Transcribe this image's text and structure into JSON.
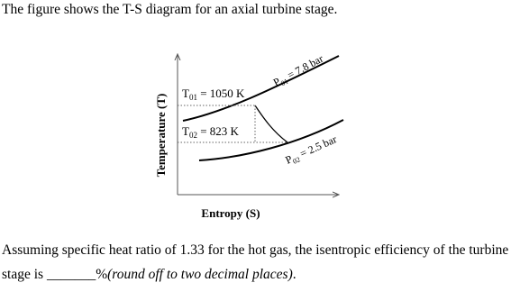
{
  "intro": "The figure shows the T-S diagram for an axial turbine stage.",
  "diagram": {
    "y_axis_label": "Temperature (T)",
    "x_axis_label": "Entropy (S)",
    "t01": {
      "symbol": "T",
      "subscript": "01",
      "text": " = 1050 K"
    },
    "t02": {
      "symbol": "T",
      "subscript": "02",
      "text": " = 823 K"
    },
    "p01": {
      "symbol": "P",
      "subscript": "01",
      "text": " = 7.8 bar"
    },
    "p02": {
      "symbol": "P",
      "subscript": "02",
      "text": " = 2.5 bar"
    }
  },
  "question": {
    "text": "Assuming specific heat ratio of 1.33 for the hot gas, the isentropic efficiency of the turbine stage is ",
    "blank": "_______",
    "unit": "%",
    "instruction": "(round off to two decimal places)",
    "end": "."
  }
}
